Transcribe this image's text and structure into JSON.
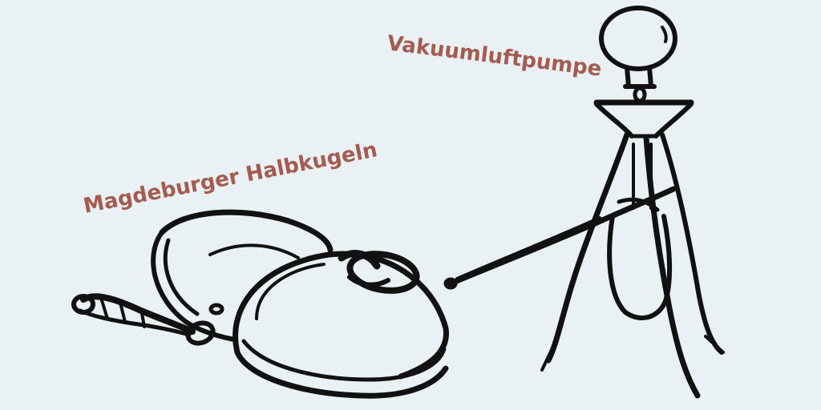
{
  "labels": {
    "pump": "Vakuumluftpumpe",
    "hemispheres": "Magdeburger Halbkugeln"
  },
  "colors": {
    "background": "#e9f1f4",
    "label": "#a65a4f",
    "ink": "#111111"
  }
}
